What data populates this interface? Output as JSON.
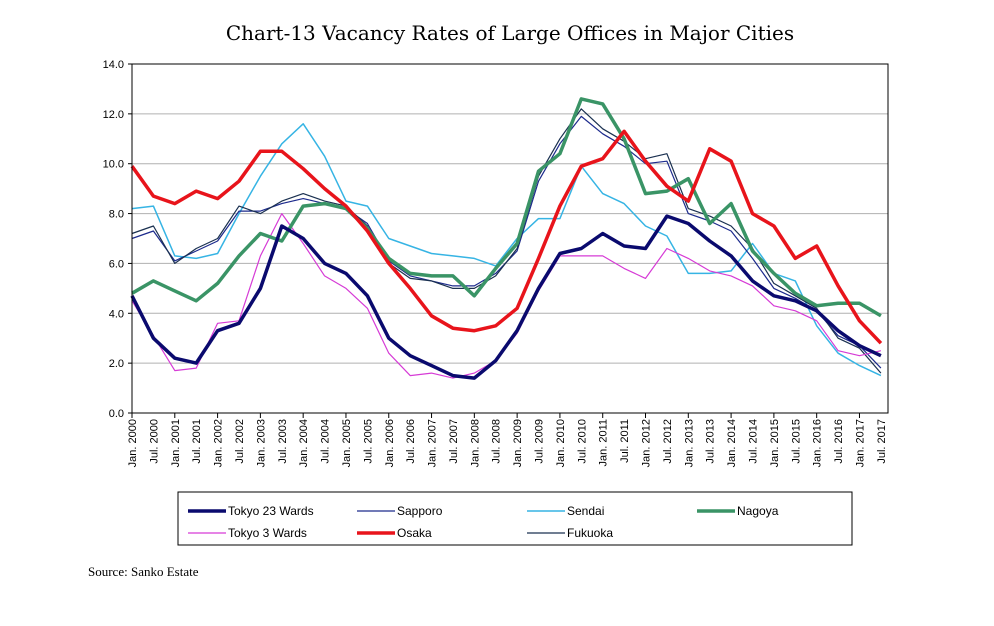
{
  "chart_data": {
    "type": "line",
    "title": "Chart-13 Vacancy Rates of Large Offices in Major Cities",
    "source": "Source: Sanko Estate",
    "xlabel": "",
    "ylabel": "",
    "ylim": [
      0,
      14
    ],
    "yticks": [
      "0.0",
      "2.0",
      "4.0",
      "6.0",
      "8.0",
      "10.0",
      "12.0",
      "14.0"
    ],
    "grid": true,
    "legend_position": "bottom",
    "x_tick_labels": [
      "Jan. 2000",
      "Jul. 2000",
      "Jan. 2001",
      "Jul. 2001",
      "Jan. 2002",
      "Jul. 2002",
      "Jan. 2003",
      "Jul. 2003",
      "Jan. 2004",
      "Jul. 2004",
      "Jan. 2005",
      "Jul. 2005",
      "Jan. 2006",
      "Jul. 2006",
      "Jan. 2007",
      "Jul. 2007",
      "Jan. 2008",
      "Jul. 2008",
      "Jan. 2009",
      "Jul. 2009",
      "Jan. 2010",
      "Jul. 2010",
      "Jan. 2011",
      "Jul. 2011",
      "Jan. 2012",
      "Jul. 2012",
      "Jan. 2013",
      "Jul. 2013",
      "Jan. 2014",
      "Jul. 2014",
      "Jan. 2015",
      "Jul. 2015",
      "Jan. 2016",
      "Jul. 2016",
      "Jan. 2017",
      "Jul. 2017"
    ],
    "x": [
      "2000-01",
      "2000-07",
      "2001-01",
      "2001-07",
      "2002-01",
      "2002-07",
      "2003-01",
      "2003-07",
      "2004-01",
      "2004-07",
      "2005-01",
      "2005-07",
      "2006-01",
      "2006-07",
      "2007-01",
      "2007-07",
      "2008-01",
      "2008-07",
      "2009-01",
      "2009-07",
      "2010-01",
      "2010-07",
      "2011-01",
      "2011-07",
      "2012-01",
      "2012-07",
      "2013-01",
      "2013-07",
      "2014-01",
      "2014-07",
      "2015-01",
      "2015-07",
      "2016-01",
      "2016-07",
      "2017-01",
      "2017-07"
    ],
    "series": [
      {
        "name": "Sendai",
        "color": "#36b4e4",
        "width": 1.5,
        "values": [
          8.2,
          8.3,
          6.3,
          6.2,
          6.4,
          8.0,
          9.5,
          10.8,
          11.6,
          10.3,
          8.5,
          8.3,
          7.0,
          6.7,
          6.4,
          6.3,
          6.2,
          5.9,
          7.0,
          7.8,
          7.8,
          9.9,
          8.8,
          8.4,
          7.5,
          7.1,
          5.6,
          5.6,
          5.7,
          6.8,
          5.6,
          5.3,
          3.5,
          2.4,
          1.9,
          1.5
        ]
      },
      {
        "name": "Sapporo",
        "color": "#1c2a8c",
        "width": 1.2,
        "values": [
          7.0,
          7.3,
          6.1,
          6.5,
          6.9,
          8.1,
          8.1,
          8.4,
          8.6,
          8.4,
          8.2,
          7.6,
          6.1,
          5.5,
          5.3,
          5.1,
          5.1,
          5.6,
          6.5,
          9.3,
          10.8,
          11.9,
          11.2,
          10.7,
          10.0,
          10.1,
          8.0,
          7.7,
          7.3,
          6.2,
          5.0,
          4.6,
          4.1,
          3.1,
          2.7,
          1.8
        ]
      },
      {
        "name": "Fukuoka",
        "color": "#1a3050",
        "width": 1.2,
        "values": [
          7.2,
          7.5,
          6.0,
          6.6,
          7.0,
          8.3,
          8.0,
          8.5,
          8.8,
          8.5,
          8.3,
          7.5,
          6.0,
          5.4,
          5.3,
          5.0,
          5.0,
          5.5,
          6.6,
          9.5,
          11.0,
          12.2,
          11.4,
          10.9,
          10.2,
          10.4,
          8.2,
          7.9,
          7.5,
          6.6,
          5.2,
          4.7,
          4.2,
          3.0,
          2.6,
          1.6
        ]
      },
      {
        "name": "Tokyo 3 Wards",
        "color": "#d63bd6",
        "width": 1.2,
        "values": [
          4.5,
          3.1,
          1.7,
          1.8,
          3.6,
          3.7,
          6.3,
          8.0,
          6.8,
          5.5,
          5.0,
          4.2,
          2.4,
          1.5,
          1.6,
          1.4,
          1.6,
          2.1,
          3.2,
          4.9,
          6.3,
          6.3,
          6.3,
          5.8,
          5.4,
          6.6,
          6.2,
          5.7,
          5.5,
          5.1,
          4.3,
          4.1,
          3.7,
          2.5,
          2.3,
          2.5
        ]
      },
      {
        "name": "Nagoya",
        "color": "#3a9466",
        "width": 3.5,
        "values": [
          4.8,
          5.3,
          4.9,
          4.5,
          5.2,
          6.3,
          7.2,
          6.9,
          8.3,
          8.4,
          8.2,
          7.4,
          6.2,
          5.6,
          5.5,
          5.5,
          4.7,
          5.8,
          6.8,
          9.7,
          10.4,
          12.6,
          12.4,
          11.0,
          8.8,
          8.9,
          9.4,
          7.6,
          8.4,
          6.5,
          5.6,
          4.8,
          4.3,
          4.4,
          4.4,
          3.9
        ]
      },
      {
        "name": "Tokyo 23 Wards",
        "color": "#0a0a6e",
        "width": 3.5,
        "values": [
          4.7,
          3.0,
          2.2,
          2.0,
          3.3,
          3.6,
          5.0,
          7.5,
          7.0,
          6.0,
          5.6,
          4.7,
          3.0,
          2.3,
          1.9,
          1.5,
          1.4,
          2.1,
          3.3,
          5.0,
          6.4,
          6.6,
          7.2,
          6.7,
          6.6,
          7.9,
          7.6,
          6.9,
          6.3,
          5.3,
          4.7,
          4.5,
          4.1,
          3.3,
          2.7,
          2.3
        ]
      },
      {
        "name": "Osaka",
        "color": "#e8141b",
        "width": 3.5,
        "values": [
          9.9,
          8.7,
          8.4,
          8.9,
          8.6,
          9.3,
          10.5,
          10.5,
          9.8,
          9.0,
          8.3,
          7.3,
          6.0,
          5.0,
          3.9,
          3.4,
          3.3,
          3.5,
          4.2,
          6.2,
          8.3,
          9.9,
          10.2,
          11.3,
          10.1,
          9.1,
          8.5,
          10.6,
          10.1,
          8.0,
          7.5,
          6.2,
          6.7,
          5.1,
          3.7,
          2.8
        ]
      }
    ],
    "legend": [
      "Tokyo 23 Wards",
      "Sapporo",
      "Sendai",
      "Nagoya",
      "Tokyo 3 Wards",
      "Osaka",
      "Fukuoka"
    ]
  }
}
